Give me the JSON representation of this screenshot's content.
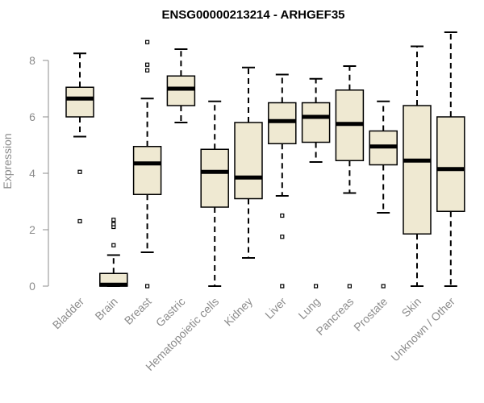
{
  "chart_data": {
    "type": "box",
    "title": "ENSG00000213214 - ARHGEF35",
    "xlabel": "",
    "ylabel": "Expression",
    "ylim": [
      0,
      9
    ],
    "yticks": [
      0,
      2,
      4,
      6,
      8
    ],
    "box_fill": "#efe9d2",
    "categories": [
      "Bladder",
      "Brain",
      "Breast",
      "Gastric",
      "Hematopoietic cells",
      "Kidney",
      "Liver",
      "Lung",
      "Pancreas",
      "Prostate",
      "Skin",
      "Unknown / Other"
    ],
    "boxes": [
      {
        "min": 5.3,
        "q1": 6.0,
        "median": 6.65,
        "q3": 7.05,
        "max": 8.25,
        "outliers": [
          4.05,
          2.3
        ]
      },
      {
        "min": 0.0,
        "q1": 0.0,
        "median": 0.05,
        "q3": 0.45,
        "max": 1.1,
        "outliers": [
          1.45,
          2.1,
          2.2,
          2.35
        ]
      },
      {
        "min": 1.2,
        "q1": 3.25,
        "median": 4.35,
        "q3": 4.95,
        "max": 6.65,
        "outliers": [
          7.65,
          7.85,
          8.65,
          0.0
        ]
      },
      {
        "min": 5.8,
        "q1": 6.4,
        "median": 7.0,
        "q3": 7.45,
        "max": 8.4,
        "outliers": []
      },
      {
        "min": 0.0,
        "q1": 2.8,
        "median": 4.05,
        "q3": 4.85,
        "max": 6.55,
        "outliers": []
      },
      {
        "min": 1.0,
        "q1": 3.1,
        "median": 3.85,
        "q3": 5.8,
        "max": 7.75,
        "outliers": []
      },
      {
        "min": 3.2,
        "q1": 5.05,
        "median": 5.85,
        "q3": 6.5,
        "max": 7.5,
        "outliers": [
          2.5,
          1.75,
          0.0
        ]
      },
      {
        "min": 4.4,
        "q1": 5.1,
        "median": 6.0,
        "q3": 6.5,
        "max": 7.35,
        "outliers": [
          0.0
        ]
      },
      {
        "min": 3.3,
        "q1": 4.45,
        "median": 5.75,
        "q3": 6.95,
        "max": 7.8,
        "outliers": [
          0.0
        ]
      },
      {
        "min": 2.6,
        "q1": 4.3,
        "median": 4.95,
        "q3": 5.5,
        "max": 6.55,
        "outliers": [
          0.0
        ]
      },
      {
        "min": 0.0,
        "q1": 1.85,
        "median": 4.45,
        "q3": 6.4,
        "max": 8.5,
        "outliers": []
      },
      {
        "min": 0.0,
        "q1": 2.65,
        "median": 4.15,
        "q3": 6.0,
        "max": 9.0,
        "outliers": []
      }
    ]
  }
}
